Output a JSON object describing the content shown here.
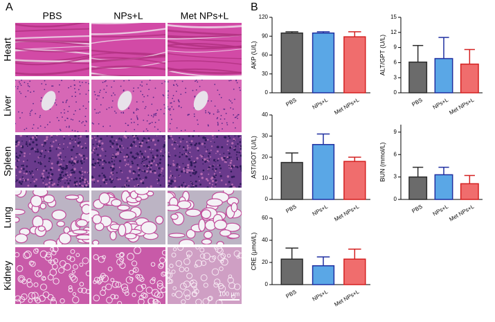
{
  "panel_a": {
    "label": "A",
    "columns": [
      "PBS",
      "NPs+L",
      "Met NPs+L"
    ],
    "rows": [
      "Heart",
      "Liver",
      "Spleen",
      "Lung",
      "Kidney"
    ],
    "scale_bar": "100 μm"
  },
  "panel_b": {
    "label": "B"
  },
  "chart_data": [
    {
      "type": "bar",
      "ylabel": "AKP (U/L)",
      "categories": [
        "PBS",
        "NPs+L",
        "Met NPs+L"
      ],
      "values": [
        95,
        95,
        89
      ],
      "errors": [
        2,
        2,
        8
      ],
      "colors": [
        "#6b6b6b",
        "#5aa7e6",
        "#f06d6d"
      ],
      "edge_colors": [
        "#2b2b2b",
        "#1f2fa0",
        "#d42020"
      ],
      "ylim": [
        0,
        120
      ],
      "yticks": [
        0,
        30,
        60,
        90,
        120
      ]
    },
    {
      "type": "bar",
      "ylabel": "ALT/GPT (U/L)",
      "categories": [
        "PBS",
        "NPs+L",
        "Met NPs+L"
      ],
      "values": [
        6.1,
        6.8,
        5.7
      ],
      "errors": [
        3.3,
        4.2,
        2.9
      ],
      "colors": [
        "#6b6b6b",
        "#5aa7e6",
        "#f06d6d"
      ],
      "edge_colors": [
        "#2b2b2b",
        "#1f2fa0",
        "#d42020"
      ],
      "ylim": [
        0,
        15
      ],
      "yticks": [
        0,
        3,
        6,
        9,
        12,
        15
      ]
    },
    {
      "type": "bar",
      "ylabel": "AST/GOT (U/L)",
      "categories": [
        "PBS",
        "NPs+L",
        "Met NPs+L"
      ],
      "values": [
        17.5,
        26,
        18
      ],
      "errors": [
        4.5,
        5,
        2
      ],
      "colors": [
        "#6b6b6b",
        "#5aa7e6",
        "#f06d6d"
      ],
      "edge_colors": [
        "#2b2b2b",
        "#1f2fa0",
        "#d42020"
      ],
      "ylim": [
        0,
        40
      ],
      "yticks": [
        0,
        10,
        20,
        30,
        40
      ]
    },
    {
      "type": "bar",
      "ylabel": "BUN (mmol/L)",
      "categories": [
        "PBS",
        "NPs+L",
        "Met NPs+L"
      ],
      "values": [
        3.0,
        3.3,
        2.1
      ],
      "errors": [
        1.3,
        1.0,
        1.1
      ],
      "colors": [
        "#6b6b6b",
        "#5aa7e6",
        "#f06d6d"
      ],
      "edge_colors": [
        "#2b2b2b",
        "#1f2fa0",
        "#d42020"
      ],
      "ylim": [
        0,
        10
      ],
      "yticks": [
        0,
        3,
        6,
        9
      ]
    },
    {
      "type": "bar",
      "ylabel": "CRE (μmol/L)",
      "categories": [
        "PBS",
        "NPs+L",
        "Met NPs+L"
      ],
      "values": [
        23,
        17,
        23
      ],
      "errors": [
        10,
        8,
        9
      ],
      "colors": [
        "#6b6b6b",
        "#5aa7e6",
        "#f06d6d"
      ],
      "edge_colors": [
        "#2b2b2b",
        "#1f2fa0",
        "#d42020"
      ],
      "ylim": [
        0,
        60
      ],
      "yticks": [
        0,
        20,
        40,
        60
      ]
    }
  ]
}
